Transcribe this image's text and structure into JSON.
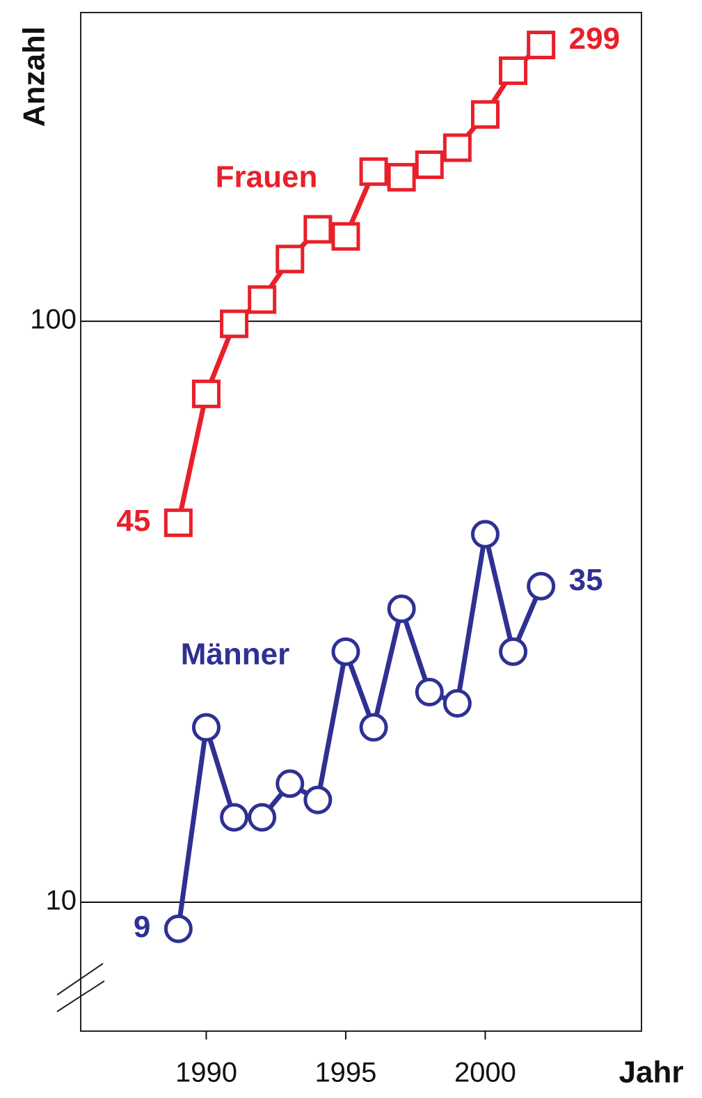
{
  "chart_data": {
    "type": "line",
    "y_scale": "log",
    "x_label": "Jahr",
    "y_label": "Anzahl",
    "x": [
      1989,
      1990,
      1991,
      1992,
      1993,
      1994,
      1995,
      1996,
      1997,
      1998,
      1999,
      2000,
      2001,
      2002
    ],
    "series": [
      {
        "name": "Frauen",
        "color": "#e8202a",
        "marker": "square",
        "values": [
          45,
          75,
          99,
          109,
          128,
          144,
          140,
          181,
          177,
          186,
          199,
          227,
          270,
          299
        ]
      },
      {
        "name": "Männer",
        "color": "#2e3192",
        "marker": "circle",
        "values": [
          9,
          20,
          14,
          14,
          16,
          15,
          27,
          20,
          32,
          23,
          22,
          43,
          27,
          35
        ]
      }
    ],
    "data_labels": "ends",
    "legend": "inline",
    "xlim": [
      1985.5,
      2005.6
    ],
    "xticks": [
      1990,
      1995,
      2000
    ],
    "ylim": [
      6,
      340
    ],
    "yticks": [
      10,
      100
    ],
    "grid": true
  }
}
